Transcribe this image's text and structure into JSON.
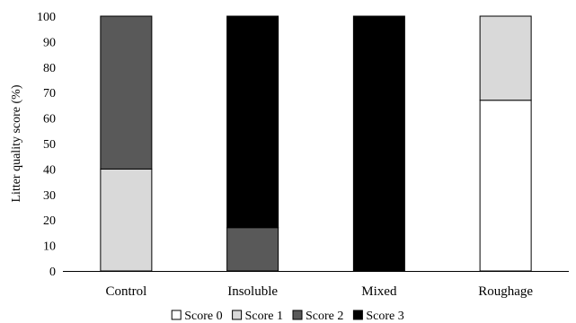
{
  "chart_data": {
    "type": "bar",
    "stacked": true,
    "title": "",
    "xlabel": "",
    "ylabel": "Litter quality score (%)",
    "ylim": [
      0,
      100
    ],
    "yticks": [
      "0",
      "10",
      "20",
      "30",
      "40",
      "50",
      "60",
      "70",
      "80",
      "90",
      "100"
    ],
    "categories": [
      "Control",
      "Insoluble",
      "Mixed",
      "Roughage"
    ],
    "series": [
      {
        "name": "Score 0",
        "color": "#ffffff",
        "values": [
          0,
          0,
          0,
          67
        ]
      },
      {
        "name": "Score 1",
        "color": "#d9d9d9",
        "values": [
          40,
          0,
          0,
          33
        ]
      },
      {
        "name": "Score 2",
        "color": "#595959",
        "values": [
          60,
          17,
          0,
          0
        ]
      },
      {
        "name": "Score 3",
        "color": "#000000",
        "values": [
          0,
          83,
          100,
          0
        ]
      }
    ],
    "legend": "bottom",
    "grid": false
  }
}
